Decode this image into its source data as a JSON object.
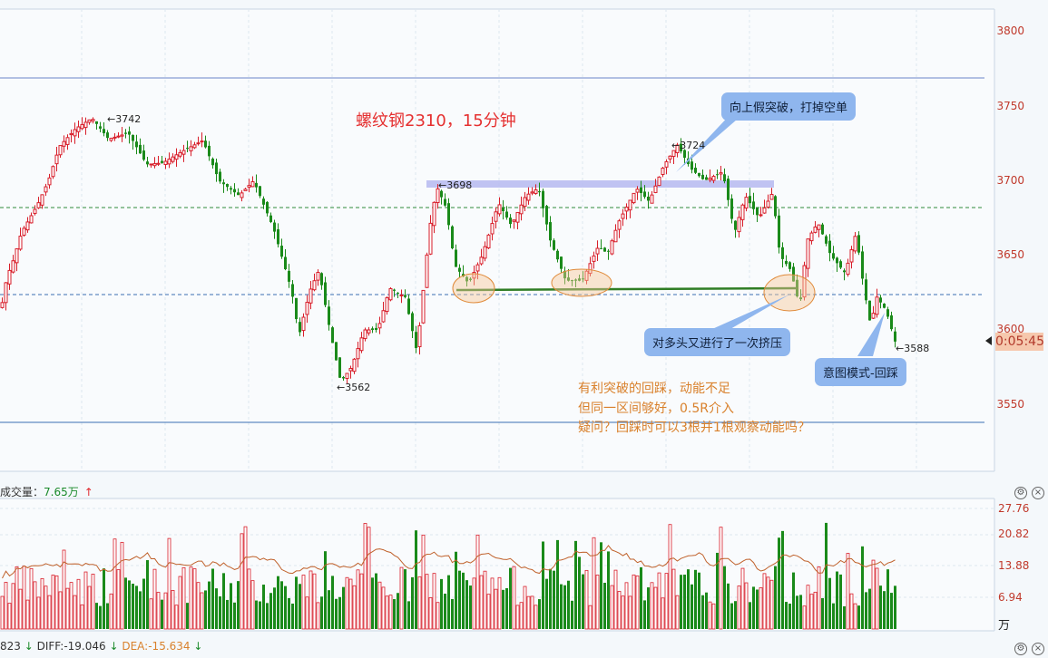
{
  "title": "螺纹钢2310，15分钟",
  "price_axis": [
    "3800",
    "3750",
    "3700",
    "3650",
    "3600",
    "3550"
  ],
  "volume_axis": [
    "27.76",
    "20.82",
    "13.88",
    "6.94",
    "万"
  ],
  "countdown": "0:05:45",
  "price_marks": {
    "high1": "←3742",
    "low1": "←3562",
    "mark3698": "←3698",
    "high2": "←3724",
    "last": "←3588"
  },
  "callouts": {
    "false_break": "向上假突破，打掉空单",
    "squeeze": "对多头又进行了一次挤压",
    "intent": "意图模式-回踩"
  },
  "notes": [
    "有利突破的回踩，动能不足",
    "但同一区间够好，0.5R介入",
    "疑问？回踩时可以3根并1根观察动能吗？"
  ],
  "volume_panel": {
    "label": "成交量：",
    "value": "7.65万"
  },
  "macd_bar": {
    "prefix": "823",
    "diff": "DIFF:-19.046",
    "dea": "DEA:-15.634"
  },
  "icons": [
    "gear-icon",
    "arrow-icon",
    "close-icon"
  ],
  "colors": {
    "up": "#d81e2a",
    "down": "#1a8a1a",
    "ma": "#c0612b",
    "accent_blue": "#8fb6ee"
  }
}
